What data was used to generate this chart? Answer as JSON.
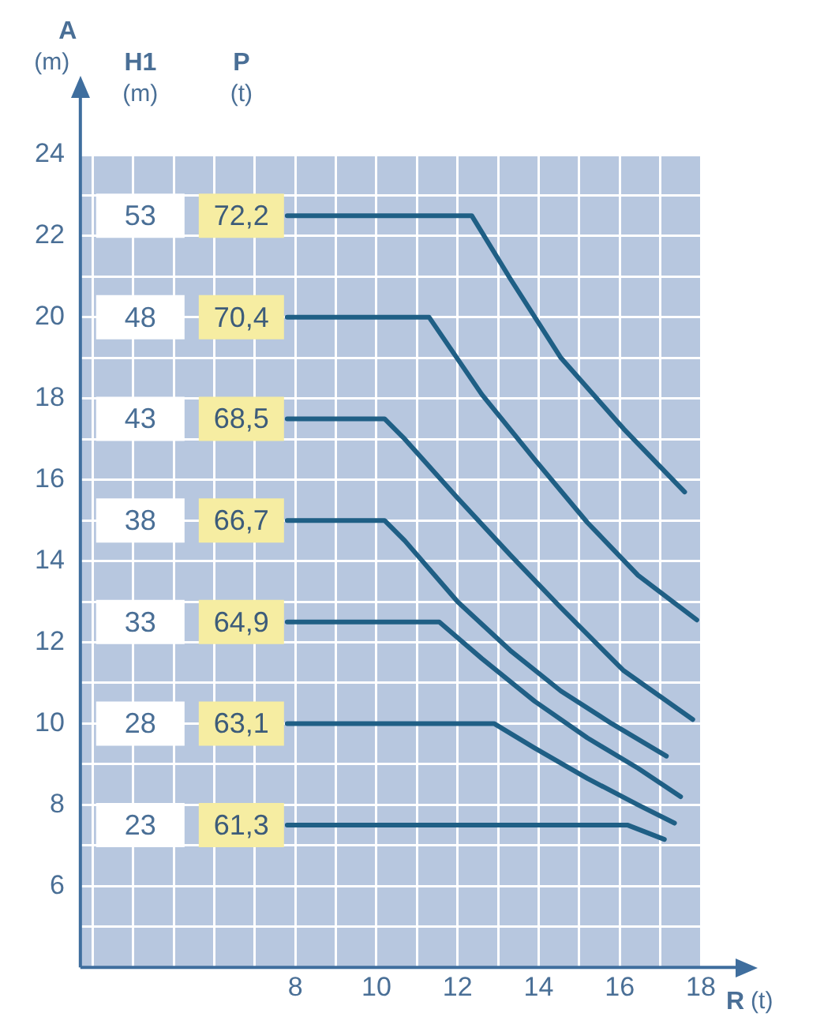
{
  "chart_data": {
    "type": "line",
    "xlabel": "R (t)",
    "ylabel": "A (m)",
    "xlim": [
      2.7,
      18
    ],
    "ylim": [
      4,
      24
    ],
    "xticks": [
      {
        "value": 3,
        "label": null
      },
      {
        "value": 4,
        "label": null
      },
      {
        "value": 5,
        "label": null
      },
      {
        "value": 6,
        "label": null
      },
      {
        "value": 7,
        "label": null
      },
      8,
      {
        "value": 9,
        "label": null
      },
      10,
      {
        "value": 11,
        "label": null
      },
      12,
      {
        "value": 13,
        "label": null
      },
      14,
      {
        "value": 15,
        "label": null
      },
      16,
      {
        "value": 17,
        "label": null
      },
      18
    ],
    "yticks": [
      {
        "value": 5,
        "label": null
      },
      6,
      {
        "value": 7,
        "label": null
      },
      8,
      {
        "value": 9,
        "label": null
      },
      10,
      {
        "value": 11,
        "label": null
      },
      12,
      {
        "value": 13,
        "label": null
      },
      14,
      {
        "value": 15,
        "label": null
      },
      16,
      {
        "value": 17,
        "label": null
      },
      18,
      {
        "value": 19,
        "label": null
      },
      20,
      {
        "value": 21,
        "label": null
      },
      22,
      {
        "value": 23,
        "label": null
      },
      24
    ],
    "grid": true,
    "marker": "none",
    "line_style": "solid",
    "series": [
      {
        "color": "#1f5f85",
        "x": [
          7.8,
          12.35,
          13.3,
          14.55,
          16.1,
          17.6
        ],
        "values": [
          22.5,
          22.5,
          20.95,
          19.0,
          17.25,
          15.7
        ]
      },
      {
        "color": "#1f5f85",
        "x": [
          7.8,
          11.3,
          12.6,
          13.9,
          15.2,
          16.45,
          17.9
        ],
        "values": [
          20,
          20,
          18.1,
          16.5,
          14.95,
          13.65,
          12.55
        ]
      },
      {
        "color": "#1f5f85",
        "x": [
          7.8,
          10.2,
          10.7,
          12.0,
          13.3,
          14.55,
          16.1,
          17.8
        ],
        "values": [
          17.5,
          17.5,
          17.0,
          15.55,
          14.15,
          12.85,
          11.3,
          10.1
        ]
      },
      {
        "color": "#1f5f85",
        "x": [
          7.8,
          10.2,
          10.7,
          12.0,
          13.3,
          14.55,
          15.8,
          17.15
        ],
        "values": [
          15,
          15,
          14.5,
          13.0,
          11.8,
          10.8,
          10.0,
          9.2
        ]
      },
      {
        "color": "#1f5f85",
        "x": [
          7.8,
          11.55,
          12.6,
          13.9,
          15.2,
          16.45,
          17.5
        ],
        "values": [
          12.5,
          12.5,
          11.6,
          10.55,
          9.65,
          8.9,
          8.2
        ]
      },
      {
        "color": "#1f5f85",
        "x": [
          7.8,
          12.9,
          13.9,
          15.2,
          16.45,
          17.35
        ],
        "values": [
          10,
          10,
          9.4,
          8.65,
          8.0,
          7.55
        ]
      },
      {
        "color": "#1f5f85",
        "x": [
          7.8,
          16.2,
          17.1
        ],
        "values": [
          7.5,
          7.5,
          7.15
        ]
      }
    ],
    "annotations": [
      "H1 (m)",
      "P (t)",
      "53",
      "72,2",
      "48",
      "70,4",
      "43",
      "68,5",
      "38",
      "66,7",
      "33",
      "64,9",
      "28",
      "63,1",
      "23",
      "61,3"
    ]
  }
}
